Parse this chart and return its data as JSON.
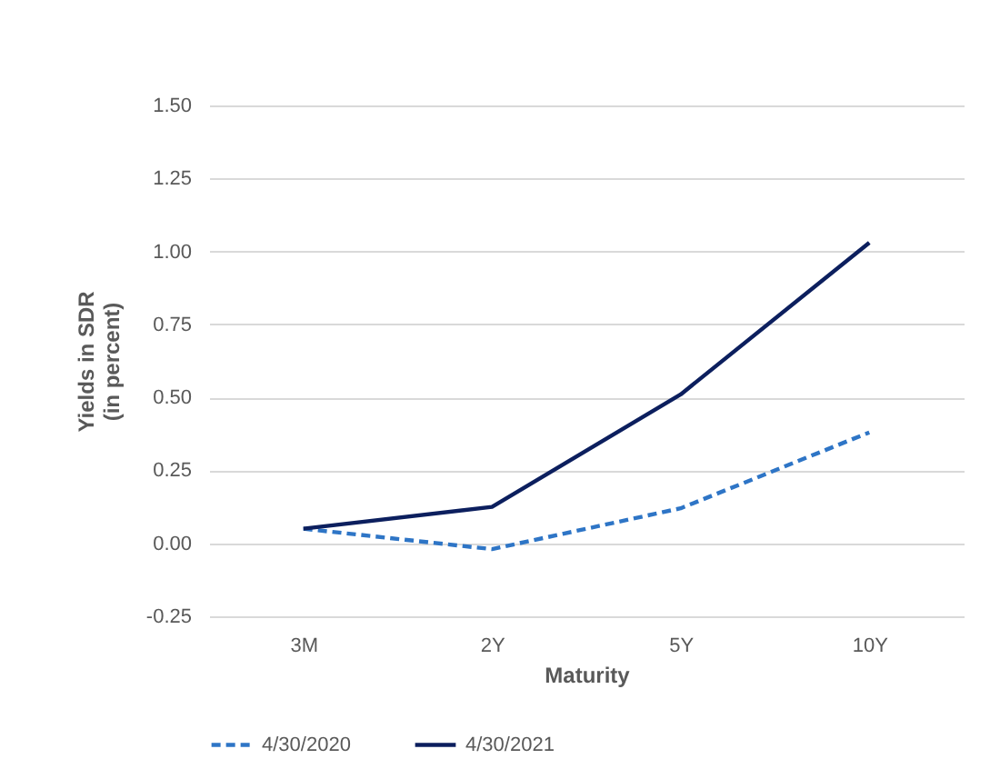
{
  "chart_data": {
    "type": "line",
    "xlabel": "Maturity",
    "ylabel": "Yields in SDR\n(in percent)",
    "categories": [
      "3M",
      "2Y",
      "5Y",
      "10Y"
    ],
    "series": [
      {
        "name": "4/30/2020",
        "color": "#2e75c6",
        "line_style": "dashed",
        "values": [
          0.05,
          -0.02,
          0.12,
          0.38
        ]
      },
      {
        "name": "4/30/2021",
        "color": "#0c1f5e",
        "line_style": "solid",
        "values": [
          0.05,
          0.125,
          0.51,
          1.03
        ]
      }
    ],
    "ylim": [
      -0.25,
      1.5
    ],
    "yticks": [
      {
        "value": -0.25,
        "label": "-0.25"
      },
      {
        "value": 0,
        "label": "0.00"
      },
      {
        "value": 0.25,
        "label": "0.25"
      },
      {
        "value": 0.5,
        "label": "0.50"
      },
      {
        "value": 0.75,
        "label": "0.75"
      },
      {
        "value": 1,
        "label": "1.00"
      },
      {
        "value": 1.25,
        "label": "1.25"
      },
      {
        "value": 1.5,
        "label": "1.50"
      }
    ],
    "grid": "y",
    "legend": "bottom",
    "marker": "none"
  }
}
